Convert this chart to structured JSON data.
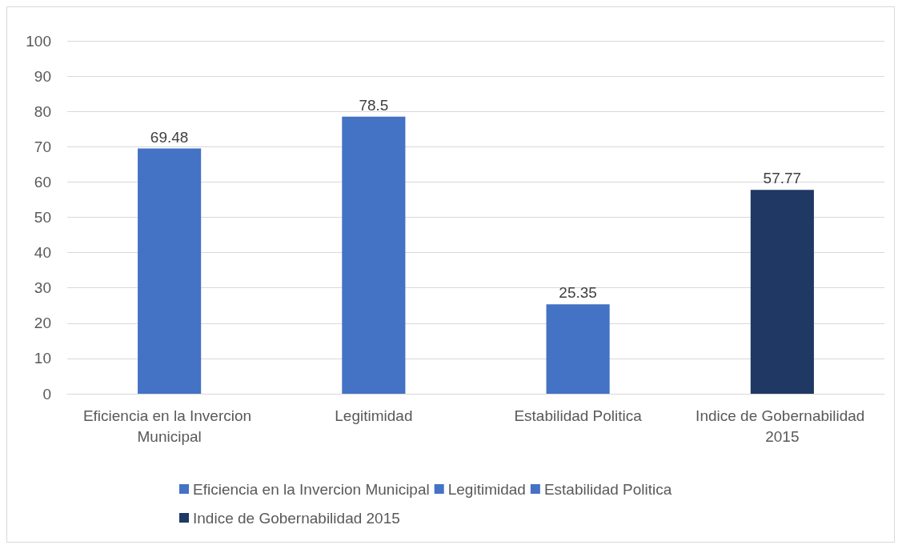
{
  "chart_data": {
    "type": "bar",
    "categories": [
      "Eficiencia en la Invercion Municipal",
      "Legitimidad",
      "Estabilidad Politica",
      "Indice de Gobernabilidad 2015"
    ],
    "series": [
      {
        "name": "Eficiencia en la Invercion Municipal",
        "color": "#4472c4",
        "values": [
          69.48,
          null,
          null,
          null
        ]
      },
      {
        "name": "Legitimidad",
        "color": "#4472c4",
        "values": [
          null,
          78.5,
          null,
          null
        ]
      },
      {
        "name": "Estabilidad Politica",
        "color": "#4472c4",
        "values": [
          null,
          null,
          25.35,
          null
        ]
      },
      {
        "name": "Indice de Gobernabilidad 2015",
        "color": "#203864",
        "values": [
          null,
          null,
          null,
          57.77
        ]
      }
    ],
    "stacked": true,
    "ylim": [
      0,
      100
    ],
    "yticks": [
      0,
      10,
      20,
      30,
      40,
      50,
      60,
      70,
      80,
      90,
      100
    ],
    "grid": "y",
    "legend": "bottom",
    "data_labels": true
  }
}
